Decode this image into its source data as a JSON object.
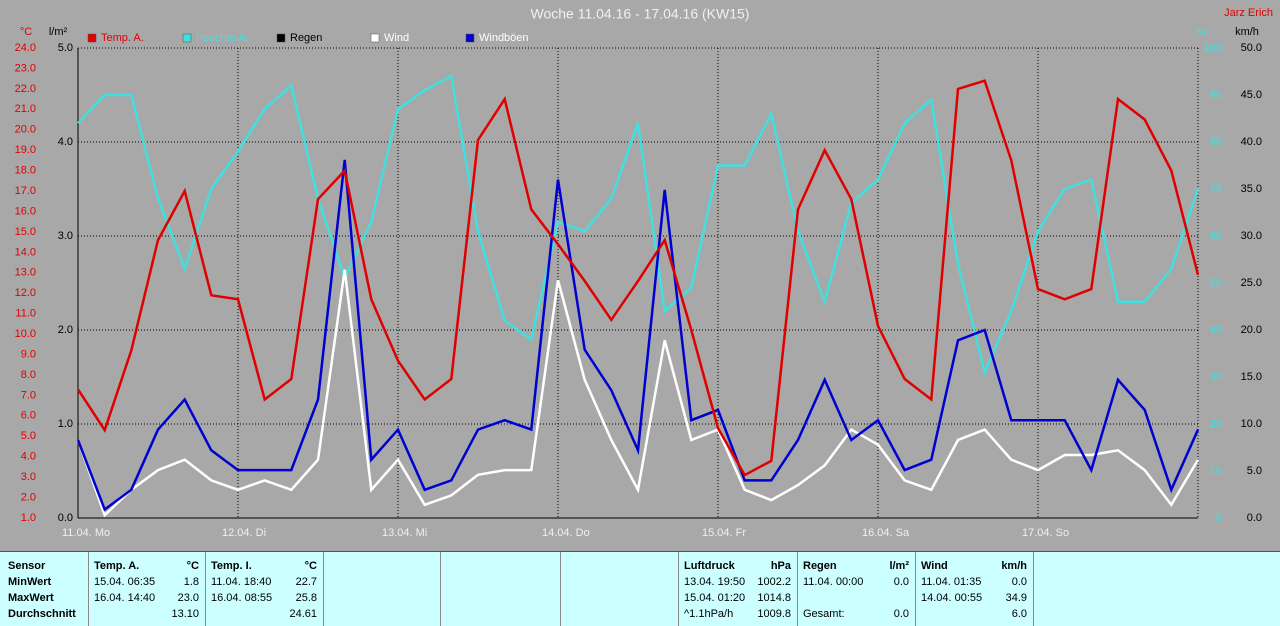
{
  "chart_data": {
    "type": "line",
    "title": "Woche 11.04.16 - 17.04.16 (KW15)",
    "author": "Jarz Erich",
    "y_label": "°C",
    "y2_label": "l/m²",
    "y3_label": "%",
    "y4_label": "km/h",
    "xlim": [
      0,
      7
    ],
    "xticks": [
      {
        "value": 0,
        "label": "11.04. Mo"
      },
      {
        "value": 1,
        "label": "12.04. Di"
      },
      {
        "value": 2,
        "label": "13.04. Mi"
      },
      {
        "value": 3,
        "label": "14.04. Do"
      },
      {
        "value": 4,
        "label": "15.04. Fr"
      },
      {
        "value": 5,
        "label": "16.04. Sa"
      },
      {
        "value": 6,
        "label": "17.04. So"
      }
    ],
    "ylim": [
      1,
      24
    ],
    "yticks": [
      {
        "value": 1,
        "label": "1.0"
      },
      {
        "value": 2,
        "label": "2.0"
      },
      {
        "value": 3,
        "label": "3.0"
      },
      {
        "value": 4,
        "label": "4.0"
      },
      {
        "value": 5,
        "label": "5.0"
      },
      {
        "value": 6,
        "label": "6.0"
      },
      {
        "value": 7,
        "label": "7.0"
      },
      {
        "value": 8,
        "label": "8.0"
      },
      {
        "value": 9,
        "label": "9.0"
      },
      {
        "value": 10,
        "label": "10.0"
      },
      {
        "value": 11,
        "label": "11.0"
      },
      {
        "value": 12,
        "label": "12.0"
      },
      {
        "value": 13,
        "label": "13.0"
      },
      {
        "value": 14,
        "label": "14.0"
      },
      {
        "value": 15,
        "label": "15.0"
      },
      {
        "value": 16,
        "label": "16.0"
      },
      {
        "value": 17,
        "label": "17.0"
      },
      {
        "value": 18,
        "label": "18.0"
      },
      {
        "value": 19,
        "label": "19.0"
      },
      {
        "value": 20,
        "label": "20.0"
      },
      {
        "value": 21,
        "label": "21.0"
      },
      {
        "value": 22,
        "label": "22.0"
      },
      {
        "value": 23,
        "label": "23.0"
      },
      {
        "value": 24,
        "label": "24.0"
      }
    ],
    "y2lim": [
      0,
      5
    ],
    "y2ticks": [
      {
        "value": 0,
        "label": "0.0"
      },
      {
        "value": 1,
        "label": "1.0"
      },
      {
        "value": 2,
        "label": "2.0"
      },
      {
        "value": 3,
        "label": "3.0"
      },
      {
        "value": 4,
        "label": "4.0"
      },
      {
        "value": 5,
        "label": "5.0"
      }
    ],
    "y3lim": [
      0,
      100
    ],
    "y3ticks": [
      0,
      10,
      20,
      30,
      40,
      50,
      60,
      70,
      80,
      90,
      100
    ],
    "y4lim": [
      0,
      50
    ],
    "y4ticks": [
      {
        "value": 0,
        "label": "0.0"
      },
      {
        "value": 5,
        "label": "5.0"
      },
      {
        "value": 10,
        "label": "10.0"
      },
      {
        "value": 15,
        "label": "15.0"
      },
      {
        "value": 20,
        "label": "20.0"
      },
      {
        "value": 25,
        "label": "25.0"
      },
      {
        "value": 30,
        "label": "30.0"
      },
      {
        "value": 35,
        "label": "35.0"
      },
      {
        "value": 40,
        "label": "40.0"
      },
      {
        "value": 45,
        "label": "45.0"
      },
      {
        "value": 50,
        "label": "50.0"
      }
    ],
    "grid": true,
    "x": [
      0,
      0.167,
      0.333,
      0.5,
      0.667,
      0.833,
      1,
      1.167,
      1.333,
      1.5,
      1.667,
      1.833,
      2,
      2.167,
      2.333,
      2.5,
      2.667,
      2.833,
      3,
      3.167,
      3.333,
      3.5,
      3.667,
      3.833,
      4,
      4.167,
      4.333,
      4.5,
      4.667,
      4.833,
      5,
      5.167,
      5.333,
      5.5,
      5.667,
      5.833,
      6,
      6.167,
      6.333,
      6.5,
      6.667,
      6.833,
      7
    ],
    "series": [
      {
        "name": "Temp. A.",
        "color": "#e00000",
        "axis": "y",
        "values": [
          7.3,
          5.3,
          9.2,
          14.6,
          17.0,
          11.9,
          11.7,
          6.8,
          7.8,
          16.6,
          18.0,
          11.7,
          8.7,
          6.8,
          7.8,
          19.5,
          21.5,
          16.1,
          14.4,
          12.6,
          10.7,
          12.6,
          14.6,
          10.2,
          5.4,
          3.1,
          3.8,
          16.1,
          19.0,
          16.6,
          10.4,
          7.8,
          6.8,
          22.0,
          22.4,
          18.5,
          12.2,
          11.7,
          12.2,
          21.5,
          20.5,
          18.0,
          12.9
        ]
      },
      {
        "name": "Feuchte A.",
        "color": "#40e0e0",
        "axis": "y3",
        "values": [
          84,
          90,
          90,
          68,
          53,
          70,
          78,
          87,
          92,
          68,
          51,
          63,
          87,
          91,
          94,
          61,
          42,
          38,
          63,
          61,
          68,
          84,
          44,
          49,
          75,
          75,
          86,
          61,
          46,
          67,
          72,
          84,
          89,
          54,
          31,
          44,
          61,
          70,
          72,
          46,
          46,
          53,
          70
        ]
      },
      {
        "name": "Regen",
        "color": "#000000",
        "axis": "y2",
        "values": [
          0,
          0,
          0,
          0,
          0,
          0,
          0,
          0,
          0,
          0,
          0,
          0,
          0,
          0,
          0,
          0,
          0,
          0,
          0,
          0,
          0,
          0,
          0,
          0,
          0,
          0,
          0,
          0,
          0,
          0,
          0,
          0,
          0,
          0,
          0,
          0,
          0,
          0,
          0,
          0,
          0,
          0,
          0
        ]
      },
      {
        "name": "Wind",
        "color": "#ffffff",
        "axis": "y4",
        "values": [
          8.3,
          0.3,
          3.0,
          5.1,
          6.2,
          4.0,
          3.0,
          4.0,
          3.0,
          6.2,
          26.4,
          3.0,
          6.2,
          1.4,
          2.4,
          4.6,
          5.1,
          5.1,
          25.3,
          14.7,
          8.3,
          3.0,
          18.9,
          8.3,
          9.4,
          3.0,
          1.9,
          3.5,
          5.6,
          9.4,
          7.8,
          4.0,
          3.0,
          8.3,
          9.4,
          6.2,
          5.1,
          6.7,
          6.7,
          7.2,
          5.1,
          1.4,
          6.2
        ]
      },
      {
        "name": "Windböen",
        "color": "#0000d0",
        "axis": "y4",
        "values": [
          8.3,
          0.9,
          3.0,
          9.4,
          12.6,
          7.2,
          5.1,
          5.1,
          5.1,
          12.6,
          38.1,
          6.2,
          9.4,
          3.0,
          4.0,
          9.4,
          10.4,
          9.4,
          36.0,
          17.9,
          13.6,
          7.2,
          34.9,
          10.4,
          11.5,
          4.0,
          4.0,
          8.3,
          14.7,
          8.3,
          10.4,
          5.1,
          6.2,
          18.9,
          20.0,
          10.4,
          10.4,
          10.4,
          5.1,
          14.7,
          11.5,
          3.0,
          9.4
        ]
      }
    ]
  },
  "stats": {
    "row_labels": [
      "Sensor",
      "MinWert",
      "MaxWert",
      "Durchschnitt"
    ],
    "groups": [
      {
        "name": "Temp. A.",
        "unit": "°C",
        "rows": [
          [
            "15.04.  06:35",
            "1.8"
          ],
          [
            "16.04.  14:40",
            "23.0"
          ],
          [
            null,
            "13.10"
          ]
        ]
      },
      {
        "name": "Temp. I.",
        "unit": "°C",
        "rows": [
          [
            "11.04.  18:40",
            "22.7"
          ],
          [
            "16.04.  08:55",
            "25.8"
          ],
          [
            null,
            "24.61"
          ]
        ]
      },
      {
        "name": "Luftdruck",
        "unit": "hPa",
        "rows": [
          [
            "13.04.  19:50",
            "1002.2"
          ],
          [
            "15.04.  01:20",
            "1014.8"
          ],
          [
            "^1.1hPa/h",
            "1009.8"
          ]
        ]
      },
      {
        "name": "Regen",
        "unit": "l/m²",
        "rows": [
          [
            "11.04.  00:00",
            "0.0"
          ],
          [
            null,
            null
          ],
          [
            "Gesamt:",
            "0.0"
          ]
        ]
      },
      {
        "name": "Wind",
        "unit": "km/h",
        "rows": [
          [
            "11.04.  01:35",
            "0.0"
          ],
          [
            "14.04.  00:55",
            "34.9"
          ],
          [
            null,
            "6.0"
          ]
        ]
      }
    ]
  }
}
